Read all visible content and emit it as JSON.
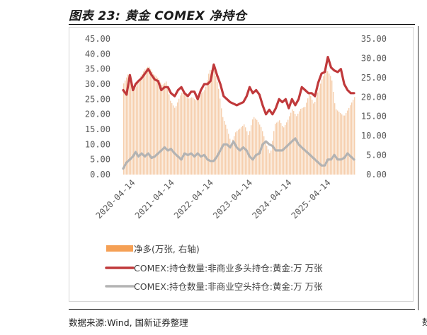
{
  "figure": {
    "title": "图表 23:  黄金 COMEX 净持仓",
    "source": "数据来源:Wind, 国新证券整理",
    "right_stub": "数"
  },
  "colors": {
    "net_bar": "#f6cfae",
    "net_legend": "#f5a055",
    "long_line": "#c0393b",
    "short_line": "#b3b3b3"
  },
  "chart_data": {
    "type": "line",
    "title": "",
    "xlabel": "",
    "ylabel": "",
    "left_axis": {
      "ylim": [
        0,
        45
      ],
      "ticks": [
        "45.00",
        "40.00",
        "35.00",
        "30.00",
        "25.00",
        "20.00",
        "15.00",
        "10.00",
        "5.00",
        "0.00"
      ]
    },
    "right_axis": {
      "ylim": [
        0,
        35
      ],
      "ticks": [
        "35.00",
        "30.00",
        "25.00",
        "20.00",
        "15.00",
        "10.00",
        "5.00",
        "0.00"
      ]
    },
    "x_range": [
      "2019-12-20",
      "2025-11-15"
    ],
    "x_ticks": [
      "2020-04-14",
      "2021-04-14",
      "2022-04-14",
      "2023-04-14",
      "2024-04-14",
      "2025-04-14"
    ],
    "grid": false,
    "legend_position": "bottom",
    "series": [
      {
        "name": "净多(万张, 右轴)",
        "type": "area",
        "axis": "right",
        "x": [
          "2019-12-20",
          "2020-02-01",
          "2020-03-15",
          "2020-04-14",
          "2020-05-20",
          "2020-07-01",
          "2020-08-10",
          "2020-09-20",
          "2020-11-01",
          "2020-12-15",
          "2021-01-20",
          "2021-03-01",
          "2021-04-14",
          "2021-05-25",
          "2021-07-01",
          "2021-08-10",
          "2021-09-20",
          "2021-11-01",
          "2021-12-15",
          "2022-01-20",
          "2022-03-01",
          "2022-04-14",
          "2022-05-20",
          "2022-07-01",
          "2022-08-10",
          "2022-09-20",
          "2022-11-01",
          "2022-12-15",
          "2023-01-20",
          "2023-03-01",
          "2023-04-14",
          "2023-05-20",
          "2023-07-01",
          "2023-08-10",
          "2023-09-20",
          "2023-11-01",
          "2023-12-15",
          "2024-01-20",
          "2024-03-01",
          "2024-04-14",
          "2024-05-20",
          "2024-07-01",
          "2024-08-10",
          "2024-09-20",
          "2024-11-01",
          "2024-12-15",
          "2025-01-20",
          "2025-03-01",
          "2025-04-14",
          "2025-05-20",
          "2025-07-01",
          "2025-08-10",
          "2025-09-20",
          "2025-11-15"
        ],
        "values": [
          23.5,
          26,
          22,
          22.5,
          25,
          27,
          28,
          26,
          25,
          23,
          24,
          19,
          17,
          20,
          22,
          19.5,
          20,
          19,
          21,
          22,
          27,
          27,
          23,
          15,
          12,
          8,
          11,
          12,
          13,
          10,
          15,
          14,
          12,
          8,
          5,
          13,
          14,
          12,
          14,
          17,
          15,
          17,
          17.5,
          21,
          18,
          22,
          25,
          27,
          25,
          17,
          16,
          15,
          17,
          20
        ]
      },
      {
        "name": "COMEX:持仓数量:非商业多头持仓:黄金:万 万张",
        "type": "line",
        "axis": "left",
        "x": [
          "2019-12-20",
          "2020-01-20",
          "2020-02-20",
          "2020-03-20",
          "2020-04-14",
          "2020-05-10",
          "2020-06-10",
          "2020-07-10",
          "2020-08-10",
          "2020-09-10",
          "2020-10-10",
          "2020-11-10",
          "2020-12-10",
          "2021-01-10",
          "2021-02-10",
          "2021-03-10",
          "2021-04-14",
          "2021-05-15",
          "2021-06-15",
          "2021-07-15",
          "2021-08-15",
          "2021-09-15",
          "2021-10-15",
          "2021-11-15",
          "2021-12-15",
          "2022-01-15",
          "2022-02-15",
          "2022-03-15",
          "2022-04-14",
          "2022-05-15",
          "2022-06-15",
          "2022-07-15",
          "2022-08-15",
          "2022-09-15",
          "2022-10-15",
          "2022-11-15",
          "2022-12-15",
          "2023-01-15",
          "2023-02-15",
          "2023-03-15",
          "2023-04-14",
          "2023-05-15",
          "2023-06-15",
          "2023-07-15",
          "2023-08-15",
          "2023-09-15",
          "2023-10-15",
          "2023-11-15",
          "2023-12-15",
          "2024-01-15",
          "2024-02-15",
          "2024-03-15",
          "2024-04-14",
          "2024-05-15",
          "2024-06-15",
          "2024-07-15",
          "2024-08-15",
          "2024-09-15",
          "2024-10-15",
          "2024-11-15",
          "2024-12-15",
          "2025-01-15",
          "2025-02-15",
          "2025-03-15",
          "2025-04-14",
          "2025-05-15",
          "2025-06-15",
          "2025-07-15",
          "2025-08-15",
          "2025-09-15",
          "2025-10-15",
          "2025-11-15"
        ],
        "values": [
          28,
          26.5,
          33,
          28,
          30,
          31,
          32,
          33.5,
          35,
          33,
          31.5,
          31,
          28,
          29,
          29,
          27,
          26,
          28,
          29,
          27,
          26,
          27.5,
          27.5,
          25,
          28,
          30,
          30,
          31,
          36.5,
          33,
          30,
          26,
          25,
          24,
          23.5,
          23,
          23.5,
          24,
          26,
          29,
          27,
          28,
          26.5,
          23,
          20,
          21.5,
          20,
          22,
          25,
          24,
          25,
          22,
          25,
          23,
          25,
          29,
          28,
          27,
          27,
          26,
          30.5,
          33.5,
          34,
          39,
          35.5,
          34.5,
          34,
          35,
          30,
          28,
          27,
          27
        ]
      },
      {
        "name": "COMEX:持仓数量:非商业空头持仓:黄金:万 万张",
        "type": "line",
        "axis": "left",
        "x": [
          "2019-12-20",
          "2020-01-20",
          "2020-02-20",
          "2020-03-20",
          "2020-04-14",
          "2020-05-10",
          "2020-06-10",
          "2020-07-10",
          "2020-08-10",
          "2020-09-10",
          "2020-10-10",
          "2020-11-10",
          "2020-12-10",
          "2021-01-10",
          "2021-02-10",
          "2021-03-10",
          "2021-04-14",
          "2021-05-15",
          "2021-06-15",
          "2021-07-15",
          "2021-08-15",
          "2021-09-15",
          "2021-10-15",
          "2021-11-15",
          "2021-12-15",
          "2022-01-15",
          "2022-02-15",
          "2022-03-15",
          "2022-04-14",
          "2022-05-15",
          "2022-06-15",
          "2022-07-15",
          "2022-08-15",
          "2022-09-15",
          "2022-10-15",
          "2022-11-15",
          "2022-12-15",
          "2023-01-15",
          "2023-02-15",
          "2023-03-15",
          "2023-04-14",
          "2023-05-15",
          "2023-06-15",
          "2023-07-15",
          "2023-08-15",
          "2023-09-15",
          "2023-10-15",
          "2023-11-15",
          "2023-12-15",
          "2024-01-15",
          "2024-02-15",
          "2024-03-15",
          "2024-04-14",
          "2024-05-15",
          "2024-06-15",
          "2024-07-15",
          "2024-08-15",
          "2024-09-15",
          "2024-10-15",
          "2024-11-15",
          "2024-12-15",
          "2025-01-15",
          "2025-02-15",
          "2025-03-15",
          "2025-04-14",
          "2025-05-15",
          "2025-06-15",
          "2025-07-15",
          "2025-08-15",
          "2025-09-15",
          "2025-10-15",
          "2025-11-15"
        ],
        "values": [
          2,
          4,
          5,
          6,
          7.5,
          6,
          7,
          6,
          7,
          5.5,
          6,
          7,
          8,
          9,
          8,
          8.5,
          7,
          6,
          5,
          7,
          6.5,
          7,
          6,
          7,
          6,
          6.5,
          5,
          4.5,
          4.5,
          6,
          8,
          10,
          10,
          9,
          11,
          9,
          8,
          9,
          8,
          6,
          5,
          6.5,
          7,
          10,
          11,
          10,
          9.5,
          8,
          8,
          8,
          9,
          10,
          11,
          12,
          10,
          9,
          8,
          7,
          6,
          5,
          4,
          3,
          3,
          5,
          5,
          6.5,
          5,
          5,
          5.5,
          7,
          6,
          5
        ]
      }
    ]
  }
}
